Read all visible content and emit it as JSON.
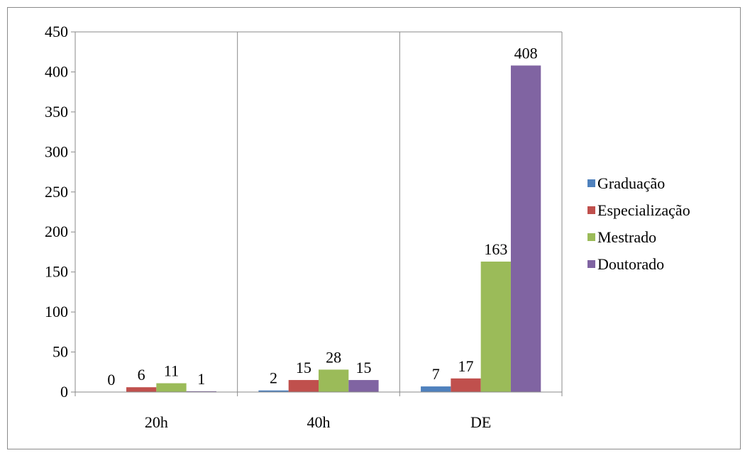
{
  "chart_data": {
    "type": "bar",
    "title": "",
    "xlabel": "",
    "ylabel": "",
    "categories": [
      "20h",
      "40h",
      "DE"
    ],
    "series": [
      {
        "name": "Graduação",
        "values": [
          0,
          2,
          7
        ],
        "color": "#4f81bd"
      },
      {
        "name": "Especialização",
        "values": [
          6,
          15,
          17
        ],
        "color": "#c0504d"
      },
      {
        "name": "Mestrado",
        "values": [
          11,
          28,
          163
        ],
        "color": "#9bbb59"
      },
      {
        "name": "Doutorado",
        "values": [
          1,
          15,
          408
        ],
        "color": "#8064a2"
      }
    ],
    "ylim": [
      0,
      450
    ],
    "yticks": [
      0,
      50,
      100,
      150,
      200,
      250,
      300,
      350,
      400,
      450
    ],
    "grid": "vertical category dividers",
    "legend": "right",
    "data_labels": true
  }
}
